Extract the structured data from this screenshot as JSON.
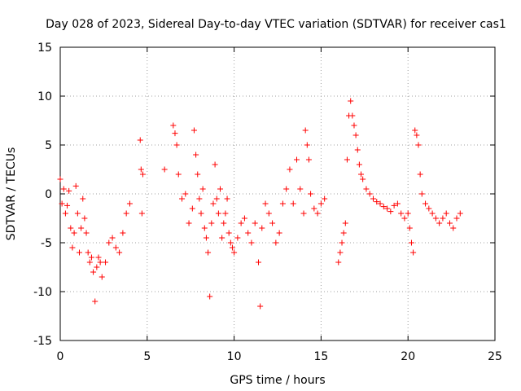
{
  "chart_data": {
    "type": "scatter",
    "title": "Day 028 of 2023, Sidereal Day-to-day VTEC variation (SDTVAR) for receiver cas1",
    "xlabel": "GPS time / hours",
    "ylabel": "SDTVAR / TECUs",
    "xlim": [
      0,
      25
    ],
    "ylim": [
      -15,
      15
    ],
    "xticks": [
      0,
      5,
      10,
      15,
      20,
      25
    ],
    "yticks": [
      -15,
      -10,
      -5,
      0,
      5,
      10,
      15
    ],
    "grid": true,
    "marker": "+",
    "color": "#ff0000",
    "series": [
      {
        "name": "SDTVAR",
        "x": [
          0.0,
          0.1,
          0.2,
          0.3,
          0.4,
          0.5,
          0.6,
          0.7,
          0.8,
          0.9,
          1.0,
          1.1,
          1.2,
          1.3,
          1.4,
          1.5,
          1.6,
          1.7,
          1.8,
          1.9,
          2.0,
          2.1,
          2.2,
          2.3,
          2.4,
          2.6,
          2.8,
          3.0,
          3.2,
          3.4,
          3.6,
          3.8,
          4.0,
          4.6,
          4.65,
          4.7,
          4.75,
          6.0,
          6.5,
          6.6,
          6.7,
          6.8,
          7.0,
          7.2,
          7.4,
          7.6,
          7.7,
          7.8,
          7.9,
          8.0,
          8.1,
          8.2,
          8.3,
          8.4,
          8.5,
          8.6,
          8.7,
          8.8,
          8.9,
          9.0,
          9.1,
          9.2,
          9.3,
          9.4,
          9.5,
          9.6,
          9.7,
          9.8,
          9.9,
          10.0,
          10.2,
          10.4,
          10.6,
          10.8,
          11.0,
          11.2,
          11.4,
          11.5,
          11.6,
          11.8,
          12.0,
          12.2,
          12.4,
          12.6,
          12.8,
          13.0,
          13.2,
          13.4,
          13.6,
          13.8,
          14.0,
          14.1,
          14.2,
          14.3,
          14.4,
          14.6,
          14.8,
          15.0,
          15.2,
          16.0,
          16.1,
          16.2,
          16.3,
          16.4,
          16.5,
          16.6,
          16.7,
          16.8,
          16.9,
          17.0,
          17.1,
          17.2,
          17.3,
          17.4,
          17.6,
          17.8,
          18.0,
          18.2,
          18.4,
          18.6,
          18.8,
          19.0,
          19.2,
          19.4,
          19.6,
          19.8,
          20.0,
          20.1,
          20.2,
          20.3,
          20.4,
          20.5,
          20.6,
          20.7,
          20.8,
          21.0,
          21.2,
          21.4,
          21.6,
          21.8,
          22.0,
          22.2,
          22.4,
          22.6,
          22.8,
          23.0
        ],
        "y": [
          1.5,
          -1.0,
          0.5,
          -2.0,
          -1.2,
          0.3,
          -3.5,
          -5.5,
          -4.0,
          0.8,
          -2.0,
          -6.0,
          -3.5,
          -0.5,
          -2.5,
          -4.0,
          -6.0,
          -7.0,
          -6.5,
          -8.0,
          -11.0,
          -7.5,
          -6.5,
          -7.0,
          -8.5,
          -7.0,
          -5.0,
          -4.5,
          -5.5,
          -6.0,
          -4.0,
          -2.0,
          -1.0,
          5.5,
          2.5,
          -2.0,
          2.0,
          2.5,
          7.0,
          6.2,
          5.0,
          2.0,
          -0.5,
          0.0,
          -3.0,
          -1.5,
          6.5,
          4.0,
          2.0,
          -0.5,
          -2.0,
          0.5,
          -3.5,
          -4.5,
          -6.0,
          -10.5,
          -3.0,
          -1.0,
          3.0,
          -0.5,
          -2.0,
          0.5,
          -4.5,
          -3.0,
          -2.0,
          -0.5,
          -4.0,
          -5.0,
          -5.5,
          -6.0,
          -4.5,
          -3.0,
          -2.5,
          -4.0,
          -5.0,
          -3.0,
          -7.0,
          -11.5,
          -3.5,
          -1.0,
          -2.0,
          -3.0,
          -5.0,
          -4.0,
          -1.0,
          0.5,
          2.5,
          -1.0,
          3.5,
          0.5,
          -2.0,
          6.5,
          5.0,
          3.5,
          0.0,
          -1.5,
          -2.0,
          -1.0,
          -0.5,
          -7.0,
          -6.0,
          -5.0,
          -4.0,
          -3.0,
          3.5,
          8.0,
          9.5,
          8.0,
          7.0,
          6.0,
          4.5,
          3.0,
          2.0,
          1.5,
          0.5,
          0.0,
          -0.5,
          -0.8,
          -1.0,
          -1.3,
          -1.5,
          -1.8,
          -1.2,
          -1.0,
          -2.0,
          -2.5,
          -2.0,
          -3.5,
          -5.0,
          -6.0,
          6.5,
          6.0,
          5.0,
          2.0,
          0.0,
          -1.0,
          -1.5,
          -2.0,
          -2.5,
          -3.0,
          -2.5,
          -2.0,
          -3.0,
          -3.5,
          -2.5,
          -2.0
        ]
      }
    ]
  }
}
